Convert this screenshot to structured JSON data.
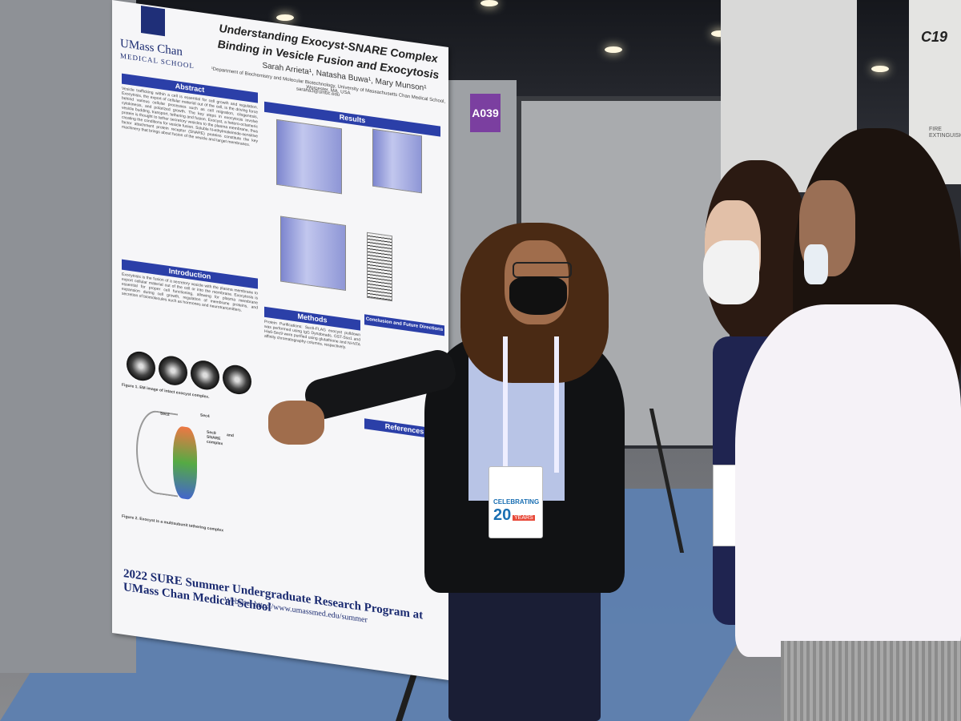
{
  "booth": {
    "sign_a": "A039",
    "sign_c": "C19",
    "fire_sign": "FIRE\nEXTINGUISHER"
  },
  "poster": {
    "logo": {
      "line1": "UMass Chan",
      "line2": "MEDICAL SCHOOL"
    },
    "title": "Understanding Exocyst-SNARE Complex Binding in Vesicle Fusion and Exocytosis",
    "authors": "Sarah Arrieta¹, Natasha Buwa¹, Mary Munson¹",
    "affiliation": "¹Department of Biochemistry and Molecular Biotechnology, University of Massachusetts Chan Medical School, Worcester, MA, USA",
    "email": "saraha3@umbc.edu",
    "sections": {
      "abstract": "Abstract",
      "introduction": "Introduction",
      "results": "Results",
      "methods": "Methods",
      "conclusion": "Conclusion and Future Directions",
      "references": "References"
    },
    "abstract_text": "Vesicle trafficking within a cell is essential for cell growth and regulation. Exocytosis, the export of cellular material out of the cell, is the driving force behind various cellular processes such as cell migration, cilogenesis, cytokinesis, and polarized growth. The key steps in exocytosis involve vesicle budding, transport, tethering and fusion. Exocyst, a hetero-octameric protein is thought to tether secretory vesicles to the plasma membrane, thus creating the conditions for vesicle fusion. Soluble N-ethylmaleimide-sensitive factor attachment protein receptor (SNARE) proteins constitute the key machinery that brings about fusion of the vesicle and target membranes.",
    "intro_text": "Exocytosis is the fusion of a secretory vesicle with the plasma membrane to export cellular material out of the cell or into the membrane. Exocytosis is essential for proper cell functioning, allowing for plasma membrane expansion during cell growth, regulation of membrane proteins, and secretion of biomolecules such as hormones and neurotransmitters.",
    "fig1_caption": "Figure 1. EM image of intact exocyst complex.",
    "fig2_caption": "Figure 2. Exocyst is a multisubunit tethering complex",
    "methods_text": "Protein Purifications: Sec6-FLAG exocyst pulldown was performed using IgG Dynabeads. GST-Sso1 and His6-Sec9 were purified using glutathione and Ni-NTA affinity chromatography columns, respectively.",
    "fig_labels": {
      "sec2": "Sec2",
      "sec4": "Sec4",
      "sec9_snare": "Sec9 and SNARE complex"
    },
    "footer_title": "2022 SURE Summer Undergraduate Research Program at UMass Chan Medical School",
    "website": "Website: http://www.umassmed.edu/summer"
  },
  "badge": {
    "celebrating": "CELEBRATING",
    "number": "20",
    "years": "YEARS"
  }
}
